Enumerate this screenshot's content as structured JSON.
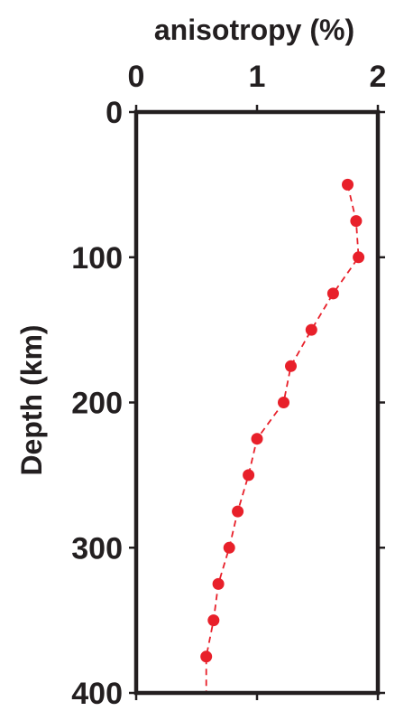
{
  "chart_data": {
    "type": "scatter",
    "title": "anisotropy (%)",
    "xlabel": "anisotropy (%)",
    "ylabel": "Depth (km)",
    "xlim": [
      0,
      2
    ],
    "ylim": [
      0,
      400
    ],
    "y_inverted": true,
    "x_axis_position": "top",
    "x_ticks": [
      0,
      1,
      2
    ],
    "x_tick_labels": [
      "0",
      "1",
      "2"
    ],
    "y_ticks": [
      0,
      100,
      200,
      300,
      400
    ],
    "y_tick_labels": [
      "0",
      "100",
      "200",
      "300",
      "400"
    ],
    "grid": false,
    "legend": "none",
    "marker_color": "#e8202a",
    "line_style": "dashed",
    "points": [
      {
        "x": 1.75,
        "y": 50
      },
      {
        "x": 1.82,
        "y": 75
      },
      {
        "x": 1.84,
        "y": 100
      },
      {
        "x": 1.63,
        "y": 125
      },
      {
        "x": 1.45,
        "y": 150
      },
      {
        "x": 1.28,
        "y": 175
      },
      {
        "x": 1.22,
        "y": 200
      },
      {
        "x": 1.0,
        "y": 225
      },
      {
        "x": 0.93,
        "y": 250
      },
      {
        "x": 0.84,
        "y": 275
      },
      {
        "x": 0.77,
        "y": 300
      },
      {
        "x": 0.68,
        "y": 325
      },
      {
        "x": 0.64,
        "y": 350
      },
      {
        "x": 0.58,
        "y": 375
      }
    ],
    "line_end": {
      "x": 0.58,
      "y": 400
    }
  }
}
